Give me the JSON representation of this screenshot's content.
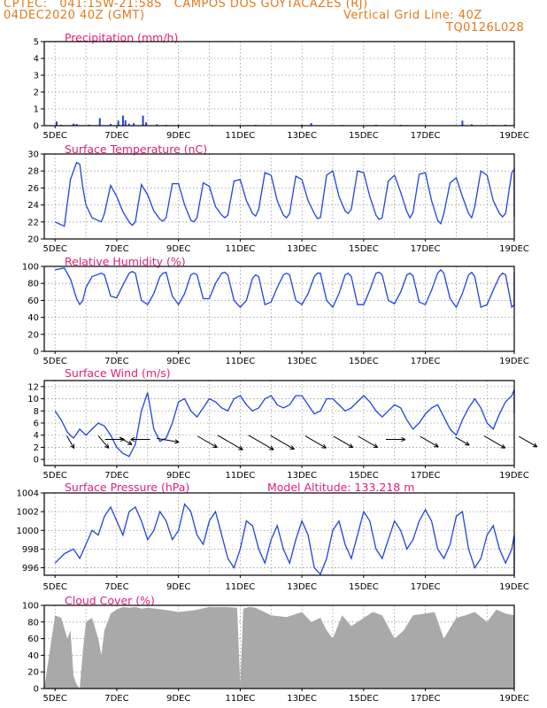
{
  "header": {
    "line1_left": "CPTEC:   041:15W-21:58S   CAMPOS DOS GOYTACAZES (RJ)",
    "line2_left": "04DEC2020 40Z (GMT)",
    "line2_right": "Vertical Grid Line: 40Z",
    "line3_right": "TQ0126L028"
  },
  "colors": {
    "header": "#e07a1f",
    "panel_title": "#e0207a",
    "series": "#2244dd",
    "cloud_fill": "#a9a9a9",
    "arrow": "#000000"
  },
  "chart_data": [
    {
      "type": "bar",
      "title": "Precipitation (mm/h)",
      "x_categories": [
        "5DEC",
        "7DEC",
        "9DEC",
        "11DEC",
        "13DEC",
        "15DEC",
        "17DEC",
        "19DEC"
      ],
      "ylim": [
        0,
        5
      ],
      "yticks": [
        0,
        1,
        2,
        3,
        4,
        5
      ],
      "grid": true,
      "values": [
        [
          0.05,
          0.25
        ],
        [
          0.2,
          0.05
        ],
        [
          0.6,
          0.12
        ],
        [
          0.7,
          0.1
        ],
        [
          1.1,
          0.06
        ],
        [
          1.45,
          0.45
        ],
        [
          1.8,
          0.1
        ],
        [
          2.05,
          0.3
        ],
        [
          2.2,
          0.6
        ],
        [
          2.28,
          0.32
        ],
        [
          2.4,
          0.12
        ],
        [
          2.55,
          0.15
        ],
        [
          2.85,
          0.6
        ],
        [
          2.95,
          0.2
        ],
        [
          3.3,
          0.08
        ],
        [
          3.6,
          0.05
        ],
        [
          4.0,
          0.05
        ],
        [
          5.1,
          0.04
        ],
        [
          6.5,
          0.05
        ],
        [
          8.0,
          0.05
        ],
        [
          8.3,
          0.15
        ],
        [
          9.3,
          0.04
        ],
        [
          10.4,
          0.05
        ],
        [
          11.2,
          0.05
        ],
        [
          13.2,
          0.3
        ],
        [
          13.5,
          0.08
        ],
        [
          14.2,
          0.04
        ],
        [
          14.6,
          0.06
        ],
        [
          15.3,
          0.05
        ]
      ]
    },
    {
      "type": "line",
      "title": "Surface Temperature (nC)",
      "x_categories": [
        "5DEC",
        "7DEC",
        "9DEC",
        "11DEC",
        "13DEC",
        "15DEC",
        "17DEC",
        "19DEC"
      ],
      "ylim": [
        20,
        30
      ],
      "yticks": [
        20,
        22,
        24,
        26,
        28,
        30
      ],
      "grid": true,
      "x": [
        0,
        0.3,
        0.5,
        0.7,
        0.8,
        0.9,
        1.0,
        1.2,
        1.5,
        1.6,
        1.8,
        2.0,
        2.2,
        2.4,
        2.5,
        2.6,
        2.8,
        3.0,
        3.2,
        3.4,
        3.5,
        3.6,
        3.8,
        4.0,
        4.2,
        4.4,
        4.5,
        4.6,
        4.8,
        5.0,
        5.2,
        5.4,
        5.5,
        5.6,
        5.8,
        6.0,
        6.2,
        6.4,
        6.5,
        6.6,
        6.8,
        7.0,
        7.2,
        7.4,
        7.5,
        7.6,
        7.8,
        8.0,
        8.2,
        8.4,
        8.5,
        8.6,
        8.8,
        9.0,
        9.2,
        9.4,
        9.5,
        9.6,
        9.8,
        10.0,
        10.2,
        10.4,
        10.5,
        10.6,
        10.8,
        11.0,
        11.2,
        11.4,
        11.5,
        11.6,
        11.8,
        12.0,
        12.2,
        12.4,
        12.5,
        12.6,
        12.8,
        13.0,
        13.2,
        13.4,
        13.5,
        13.6,
        13.8,
        14.0,
        14.2,
        14.4,
        14.5,
        14.6,
        14.8,
        15.0,
        15.2,
        15.4,
        15.5,
        15.6,
        15.8,
        16.0
      ],
      "y": [
        22,
        21.5,
        27,
        29,
        28.8,
        26,
        24,
        22.5,
        22,
        23,
        26.3,
        25,
        23.2,
        22,
        21.6,
        22,
        26.4,
        25.2,
        23.3,
        22.3,
        22.1,
        22.5,
        26.5,
        26.5,
        24,
        22.2,
        22,
        22.5,
        26.6,
        26.2,
        23.8,
        22.8,
        22.5,
        22.8,
        26.8,
        27,
        24.5,
        23,
        22.7,
        23.5,
        27.8,
        27.5,
        24.5,
        22.8,
        22.5,
        23,
        27.4,
        27,
        24.5,
        23,
        22.4,
        22.5,
        27.5,
        28,
        25,
        23.3,
        23,
        23.5,
        28,
        27.8,
        25,
        22.8,
        22.3,
        22.5,
        26.8,
        27.5,
        25.5,
        23.2,
        22.5,
        23.1,
        27.6,
        27.8,
        24.5,
        22.2,
        21.8,
        23,
        26.6,
        27.2,
        25,
        23,
        22.5,
        23.8,
        28,
        27.5,
        24.5,
        23,
        22.6,
        23,
        27.8,
        28.2,
        25,
        23,
        22.6,
        23.2,
        27.7,
        24.5
      ]
    },
    {
      "type": "line",
      "title": "Relative Humidity (%)",
      "x_categories": [
        "5DEC",
        "7DEC",
        "9DEC",
        "11DEC",
        "13DEC",
        "15DEC",
        "17DEC",
        "19DEC"
      ],
      "ylim": [
        0,
        100
      ],
      "yticks": [
        0,
        20,
        40,
        60,
        80,
        100
      ],
      "grid": true,
      "x": [
        0,
        0.3,
        0.5,
        0.7,
        0.8,
        0.9,
        1.0,
        1.2,
        1.5,
        1.6,
        1.8,
        2.0,
        2.2,
        2.4,
        2.5,
        2.6,
        2.8,
        3.0,
        3.2,
        3.4,
        3.5,
        3.6,
        3.8,
        4.0,
        4.2,
        4.4,
        4.5,
        4.6,
        4.8,
        5.0,
        5.2,
        5.4,
        5.5,
        5.6,
        5.8,
        6.0,
        6.2,
        6.4,
        6.5,
        6.6,
        6.8,
        7.0,
        7.2,
        7.4,
        7.5,
        7.6,
        7.8,
        8.0,
        8.2,
        8.4,
        8.5,
        8.6,
        8.8,
        9.0,
        9.2,
        9.4,
        9.5,
        9.6,
        9.8,
        10.0,
        10.2,
        10.4,
        10.5,
        10.6,
        10.8,
        11.0,
        11.2,
        11.4,
        11.5,
        11.6,
        11.8,
        12.0,
        12.2,
        12.4,
        12.5,
        12.6,
        12.8,
        13.0,
        13.2,
        13.4,
        13.5,
        13.6,
        13.8,
        14.0,
        14.2,
        14.4,
        14.5,
        14.6,
        14.8,
        15.0,
        15.2,
        15.4,
        15.5,
        15.6,
        15.8,
        16.0
      ],
      "y": [
        96,
        98,
        85,
        62,
        55,
        60,
        75,
        88,
        92,
        90,
        65,
        63,
        78,
        92,
        94,
        92,
        60,
        55,
        68,
        88,
        92,
        93,
        65,
        55,
        68,
        90,
        92,
        90,
        62,
        62,
        80,
        92,
        93,
        90,
        60,
        52,
        60,
        86,
        90,
        88,
        55,
        58,
        75,
        90,
        92,
        90,
        60,
        55,
        68,
        88,
        92,
        92,
        60,
        52,
        68,
        90,
        92,
        88,
        55,
        55,
        72,
        92,
        93,
        90,
        60,
        56,
        70,
        90,
        92,
        89,
        58,
        55,
        72,
        92,
        96,
        92,
        62,
        52,
        68,
        90,
        93,
        88,
        52,
        55,
        72,
        88,
        92,
        90,
        52,
        55,
        75,
        88,
        93,
        90,
        58,
        75
      ]
    },
    {
      "type": "line",
      "title": "Surface Wind (m/s)",
      "x_categories": [
        "5DEC",
        "7DEC",
        "9DEC",
        "11DEC",
        "13DEC",
        "15DEC",
        "17DEC",
        "19DEC"
      ],
      "ylim": [
        -1,
        13
      ],
      "yticks": [
        0,
        2,
        4,
        6,
        8,
        10,
        12
      ],
      "grid": true,
      "x": [
        0,
        0.2,
        0.4,
        0.6,
        0.8,
        1.0,
        1.2,
        1.4,
        1.6,
        1.8,
        2.0,
        2.2,
        2.4,
        2.6,
        2.8,
        3.0,
        3.2,
        3.4,
        3.6,
        3.8,
        4.0,
        4.2,
        4.4,
        4.6,
        4.8,
        5.0,
        5.2,
        5.4,
        5.6,
        5.8,
        6.0,
        6.2,
        6.4,
        6.6,
        6.8,
        7.0,
        7.2,
        7.4,
        7.6,
        7.8,
        8.0,
        8.2,
        8.4,
        8.6,
        8.8,
        9.0,
        9.2,
        9.4,
        9.6,
        9.8,
        10.0,
        10.2,
        10.4,
        10.6,
        10.8,
        11.0,
        11.2,
        11.4,
        11.6,
        11.8,
        12.0,
        12.2,
        12.4,
        12.6,
        12.8,
        13.0,
        13.2,
        13.4,
        13.6,
        13.8,
        14.0,
        14.2,
        14.4,
        14.6,
        14.8,
        15.0,
        15.2,
        15.4,
        15.6,
        15.8,
        16.0
      ],
      "y": [
        8,
        6.5,
        4.5,
        3.5,
        5,
        4,
        5,
        6,
        5.5,
        4,
        2,
        1,
        0.5,
        2.5,
        8,
        11,
        5,
        3,
        3.5,
        6,
        9.5,
        10,
        8,
        7,
        8.5,
        10,
        9.5,
        8.5,
        8,
        10,
        10.5,
        9,
        8,
        8.5,
        10,
        10.5,
        9,
        8.5,
        9,
        10.5,
        10.5,
        9,
        7.5,
        8,
        10,
        10,
        9,
        8,
        8.5,
        9.5,
        10.5,
        9.5,
        8,
        7,
        8,
        9,
        8.5,
        6.5,
        5,
        6,
        7.5,
        8.5,
        9,
        7,
        5,
        4,
        6.5,
        8.5,
        10,
        8.5,
        6,
        5,
        7.5,
        9.5,
        10.5,
        11.5,
        9,
        7.5,
        8.5,
        10.5,
        10
      ]
    },
    {
      "type": "line",
      "title": "Surface Pressure (hPa)",
      "annotation": "Model Altitude:  133.218  m",
      "x_categories": [
        "5DEC",
        "7DEC",
        "9DEC",
        "11DEC",
        "13DEC",
        "15DEC",
        "17DEC",
        "19DEC"
      ],
      "ylim": [
        995.2,
        1004
      ],
      "yticks": [
        996,
        998,
        1000,
        1002,
        1004
      ],
      "grid": true,
      "x": [
        0,
        0.3,
        0.6,
        0.8,
        1.0,
        1.2,
        1.4,
        1.6,
        1.8,
        2.0,
        2.2,
        2.4,
        2.6,
        2.8,
        3.0,
        3.2,
        3.4,
        3.6,
        3.8,
        4.0,
        4.2,
        4.4,
        4.6,
        4.8,
        5.0,
        5.2,
        5.4,
        5.6,
        5.8,
        6.0,
        6.2,
        6.4,
        6.6,
        6.8,
        7.0,
        7.2,
        7.4,
        7.6,
        7.8,
        8.0,
        8.2,
        8.4,
        8.6,
        8.8,
        9.0,
        9.2,
        9.4,
        9.6,
        9.8,
        10.0,
        10.2,
        10.4,
        10.6,
        10.8,
        11.0,
        11.2,
        11.4,
        11.6,
        11.8,
        12.0,
        12.2,
        12.4,
        12.6,
        12.8,
        13.0,
        13.2,
        13.4,
        13.6,
        13.8,
        14.0,
        14.2,
        14.4,
        14.6,
        14.8,
        15.0,
        15.2,
        15.4,
        15.6,
        15.8,
        16.0
      ],
      "y": [
        996.5,
        997.5,
        998,
        997,
        998.5,
        1000,
        999.5,
        1001.5,
        1002.5,
        1001,
        999.5,
        1002,
        1002.5,
        1001,
        999,
        1000,
        1002,
        1001,
        999,
        1000,
        1002.8,
        1002,
        999.5,
        998.5,
        1001,
        1002,
        999.5,
        997,
        996,
        998,
        1001,
        1000.5,
        998,
        996.5,
        999,
        1000.5,
        998,
        996.5,
        999,
        1001,
        999.5,
        996,
        995.3,
        997,
        1000,
        1001,
        998.5,
        997,
        999.5,
        1002,
        1001,
        998,
        997,
        999,
        1001,
        1000,
        998,
        999,
        1001,
        1002.2,
        1001,
        998,
        997,
        998.5,
        1001.5,
        1002,
        998,
        996,
        997,
        999.5,
        1000.5,
        998,
        996.5,
        998,
        999.5,
        997,
        995.3,
        996,
        997.5,
        996.5
      ]
    },
    {
      "type": "area",
      "title": "Cloud Cover (%)",
      "x_categories": [
        "5DEC",
        "7DEC",
        "9DEC",
        "11DEC",
        "13DEC",
        "15DEC",
        "17DEC",
        "19DEC"
      ],
      "ylim": [
        0,
        100
      ],
      "yticks": [
        0,
        20,
        40,
        60,
        80,
        100
      ],
      "grid": true,
      "x": [
        0,
        0.2,
        0.4,
        0.5,
        0.6,
        0.7,
        0.8,
        0.9,
        1.0,
        1.2,
        1.4,
        1.5,
        1.6,
        1.8,
        2.0,
        2.2,
        2.4,
        2.6,
        2.8,
        3.0,
        3.5,
        4.0,
        4.5,
        5.0,
        5.5,
        5.9,
        6.0,
        6.1,
        6.3,
        6.5,
        7.0,
        7.5,
        8.0,
        8.3,
        8.6,
        8.8,
        9.0,
        9.3,
        9.6,
        10.0,
        10.3,
        10.6,
        11.0,
        11.3,
        11.6,
        12.0,
        12.3,
        12.6,
        13.0,
        13.3,
        13.6,
        14.0,
        14.3,
        14.6,
        15.0,
        15.4,
        15.8,
        16.0
      ],
      "y": [
        88,
        85,
        60,
        70,
        15,
        5,
        0,
        45,
        80,
        85,
        60,
        40,
        70,
        90,
        95,
        98,
        97,
        98,
        96,
        97,
        95,
        92,
        94,
        98,
        98,
        97,
        5,
        96,
        98,
        97,
        88,
        86,
        92,
        80,
        85,
        70,
        60,
        88,
        75,
        85,
        92,
        88,
        60,
        70,
        88,
        90,
        92,
        60,
        85,
        88,
        92,
        80,
        95,
        90,
        88,
        92,
        90,
        95
      ]
    }
  ],
  "wind_arrows": [
    {
      "day": 0.45,
      "speed": 4.5,
      "dir_deg": 330
    },
    {
      "day": 1.5,
      "speed": 5,
      "dir_deg": 320
    },
    {
      "day": 1.8,
      "speed": 6,
      "dir_deg": 270
    },
    {
      "day": 2.2,
      "speed": 4.5,
      "dir_deg": 300
    },
    {
      "day": 2.9,
      "speed": 6,
      "dir_deg": 90
    },
    {
      "day": 3.5,
      "speed": 7,
      "dir_deg": 280
    },
    {
      "day": 4.8,
      "speed": 7,
      "dir_deg": 300
    },
    {
      "day": 5.5,
      "speed": 9,
      "dir_deg": 300
    },
    {
      "day": 6.5,
      "speed": 9,
      "dir_deg": 300
    },
    {
      "day": 7.2,
      "speed": 8.5,
      "dir_deg": 300
    },
    {
      "day": 8.3,
      "speed": 7.5,
      "dir_deg": 300
    },
    {
      "day": 9.2,
      "speed": 7,
      "dir_deg": 300
    },
    {
      "day": 10.0,
      "speed": 7,
      "dir_deg": 300
    },
    {
      "day": 10.9,
      "speed": 6,
      "dir_deg": 270
    },
    {
      "day": 12.0,
      "speed": 6.5,
      "dir_deg": 300
    },
    {
      "day": 13.1,
      "speed": 5,
      "dir_deg": 300
    },
    {
      "day": 14.1,
      "speed": 7.5,
      "dir_deg": 300
    },
    {
      "day": 15.2,
      "speed": 6.5,
      "dir_deg": 300
    }
  ]
}
